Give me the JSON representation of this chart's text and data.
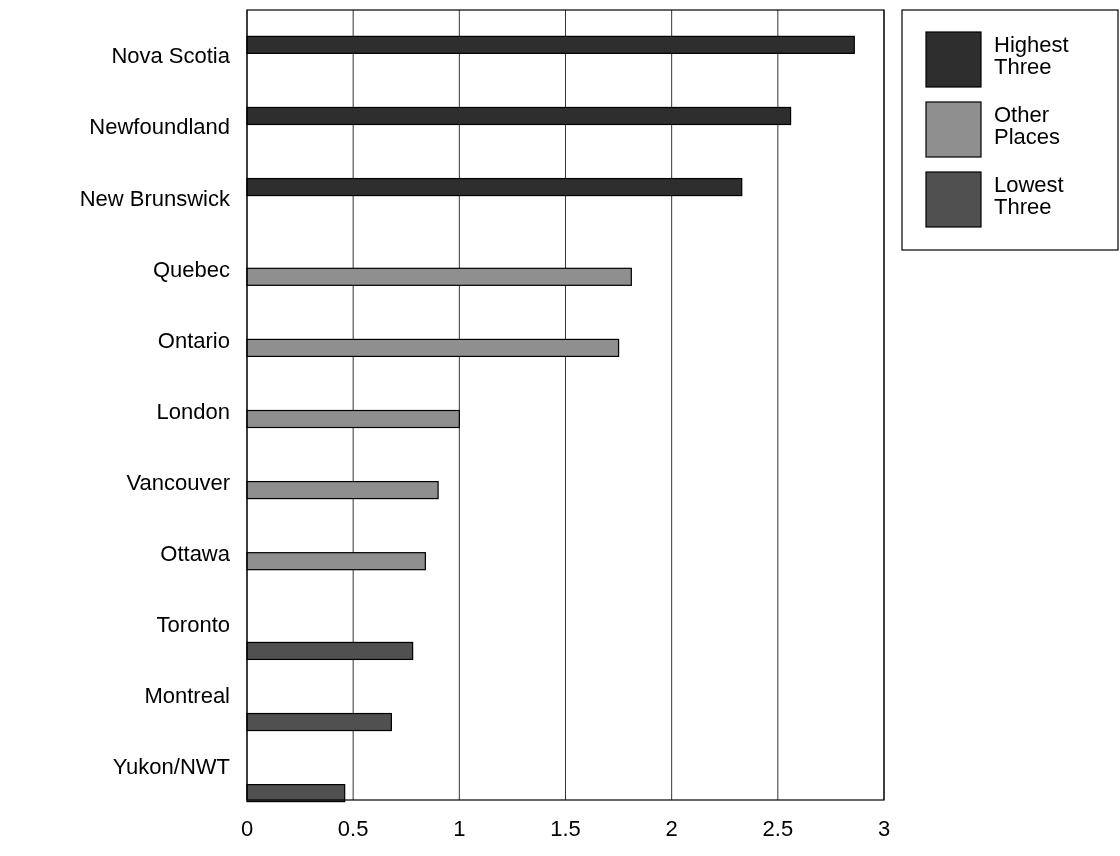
{
  "chart_data": {
    "type": "bar",
    "orientation": "horizontal",
    "categories": [
      "Nova Scotia",
      "Newfoundland",
      "New Brunswick",
      "Quebec",
      "Ontario",
      "London",
      "Vancouver",
      "Ottawa",
      "Toronto",
      "Montreal",
      "Yukon/NWT"
    ],
    "series": [
      {
        "name": "Highest Three",
        "color": "#2e2e2e",
        "values": [
          2.86,
          2.56,
          2.33,
          null,
          null,
          null,
          null,
          null,
          null,
          null,
          null
        ]
      },
      {
        "name": "Other Places",
        "color": "#8f8f8f",
        "values": [
          null,
          null,
          null,
          1.81,
          1.75,
          1.0,
          0.9,
          0.84,
          null,
          null,
          null
        ]
      },
      {
        "name": "Lowest Three",
        "color": "#505050",
        "values": [
          null,
          null,
          null,
          null,
          null,
          null,
          null,
          null,
          0.78,
          0.68,
          0.46
        ]
      }
    ],
    "xlim": [
      0,
      3
    ],
    "xticks": [
      0,
      0.5,
      1,
      1.5,
      2,
      2.5,
      3
    ],
    "grid": "x",
    "legend": "right"
  }
}
